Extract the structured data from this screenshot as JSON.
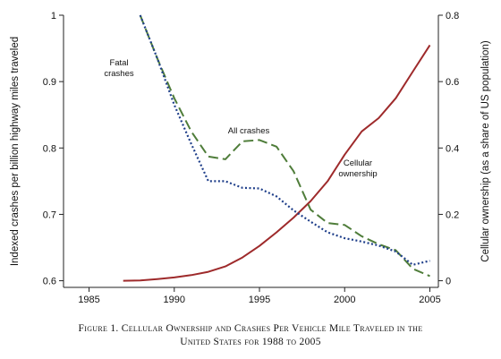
{
  "chart_data": {
    "type": "line",
    "x_ticks": [
      "1985",
      "1990",
      "1995",
      "2000",
      "2005"
    ],
    "y_left_ticks": [
      "0.6",
      "0.7",
      "0.8",
      "0.9",
      "1"
    ],
    "y_right_ticks": [
      "0",
      "0.2",
      "0.4",
      "0.6",
      "0.8"
    ],
    "ylabel_left": "Indexed crashes per billion highway miles traveled",
    "ylabel_right": "Cellular ownership (as a share of US population)",
    "xlim": [
      1983.5,
      2005.5
    ],
    "ylim_left": [
      0.59,
      1.0
    ],
    "ylim_right": [
      -0.02,
      0.8
    ],
    "grid": false,
    "annotations": {
      "fatal": [
        "Fatal",
        "crashes"
      ],
      "all": [
        "All crashes"
      ],
      "cellular": [
        "Cellular",
        "ownership"
      ]
    },
    "series": [
      {
        "key": "cellular",
        "axis": "right",
        "style": "solid",
        "color": "#9e2a2b",
        "points": [
          [
            1987,
            0.0
          ],
          [
            1988,
            0.001
          ],
          [
            1989,
            0.005
          ],
          [
            1990,
            0.01
          ],
          [
            1991,
            0.017
          ],
          [
            1992,
            0.027
          ],
          [
            1993,
            0.043
          ],
          [
            1994,
            0.07
          ],
          [
            1995,
            0.105
          ],
          [
            1996,
            0.146
          ],
          [
            1997,
            0.19
          ],
          [
            1998,
            0.24
          ],
          [
            1999,
            0.3
          ],
          [
            2000,
            0.38
          ],
          [
            2001,
            0.45
          ],
          [
            2002,
            0.49
          ],
          [
            2003,
            0.55
          ],
          [
            2004,
            0.63
          ],
          [
            2005,
            0.71
          ]
        ]
      },
      {
        "key": "all_crashes",
        "axis": "left",
        "style": "dashed",
        "color": "#4f7d3a",
        "points": [
          [
            1988,
            1.0
          ],
          [
            1989,
            0.935
          ],
          [
            1990,
            0.875
          ],
          [
            1991,
            0.825
          ],
          [
            1992,
            0.787
          ],
          [
            1993,
            0.783
          ],
          [
            1994,
            0.81
          ],
          [
            1995,
            0.812
          ],
          [
            1996,
            0.802
          ],
          [
            1997,
            0.765
          ],
          [
            1998,
            0.707
          ],
          [
            1999,
            0.687
          ],
          [
            2000,
            0.684
          ],
          [
            2001,
            0.667
          ],
          [
            2002,
            0.655
          ],
          [
            2003,
            0.646
          ],
          [
            2004,
            0.618
          ],
          [
            2005,
            0.607
          ]
        ]
      },
      {
        "key": "fatal_crashes",
        "axis": "left",
        "style": "dotted",
        "color": "#1f3f8a",
        "points": [
          [
            1988,
            1.0
          ],
          [
            1989,
            0.935
          ],
          [
            1990,
            0.865
          ],
          [
            1991,
            0.806
          ],
          [
            1992,
            0.75
          ],
          [
            1993,
            0.75
          ],
          [
            1994,
            0.74
          ],
          [
            1995,
            0.739
          ],
          [
            1996,
            0.727
          ],
          [
            1997,
            0.706
          ],
          [
            1998,
            0.689
          ],
          [
            1999,
            0.673
          ],
          [
            2000,
            0.664
          ],
          [
            2001,
            0.659
          ],
          [
            2002,
            0.653
          ],
          [
            2003,
            0.644
          ],
          [
            2004,
            0.624
          ],
          [
            2005,
            0.63
          ]
        ]
      }
    ]
  },
  "caption": {
    "line1": "Figure 1. Cellular Ownership and Crashes Per Vehicle Mile Traveled in the",
    "line2": "United States for 1988 to 2005"
  }
}
